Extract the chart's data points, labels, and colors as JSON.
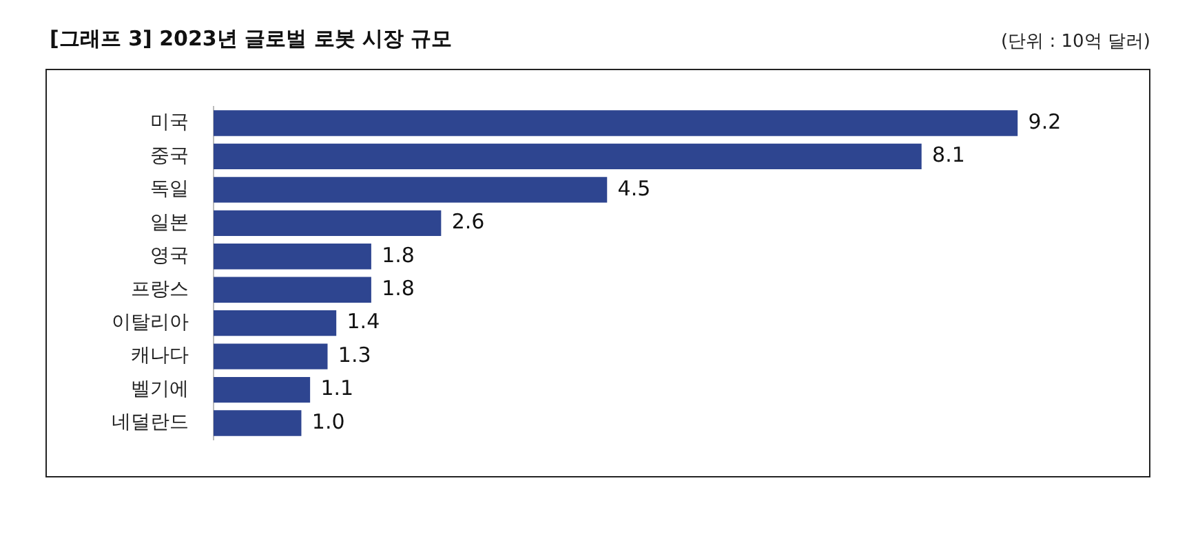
{
  "chart_data": {
    "type": "bar",
    "orientation": "horizontal",
    "title": "[그래프 3] 2023년 글로벌 로봇 시장 규모",
    "subtitle": "(단위 : 10억 달러)",
    "categories": [
      "미국",
      "중국",
      "독일",
      "일본",
      "영국",
      "프랑스",
      "이탈리아",
      "캐나다",
      "벨기에",
      "네덜란드"
    ],
    "values": [
      9.2,
      8.1,
      4.5,
      2.6,
      1.8,
      1.8,
      1.4,
      1.3,
      1.1,
      1.0
    ],
    "value_labels": [
      "9.2",
      "8.1",
      "4.5",
      "2.6",
      "1.8",
      "1.8",
      "1.4",
      "1.3",
      "1.1",
      "1.0"
    ],
    "color": "#2e4590",
    "tick_labels": "y"
  }
}
